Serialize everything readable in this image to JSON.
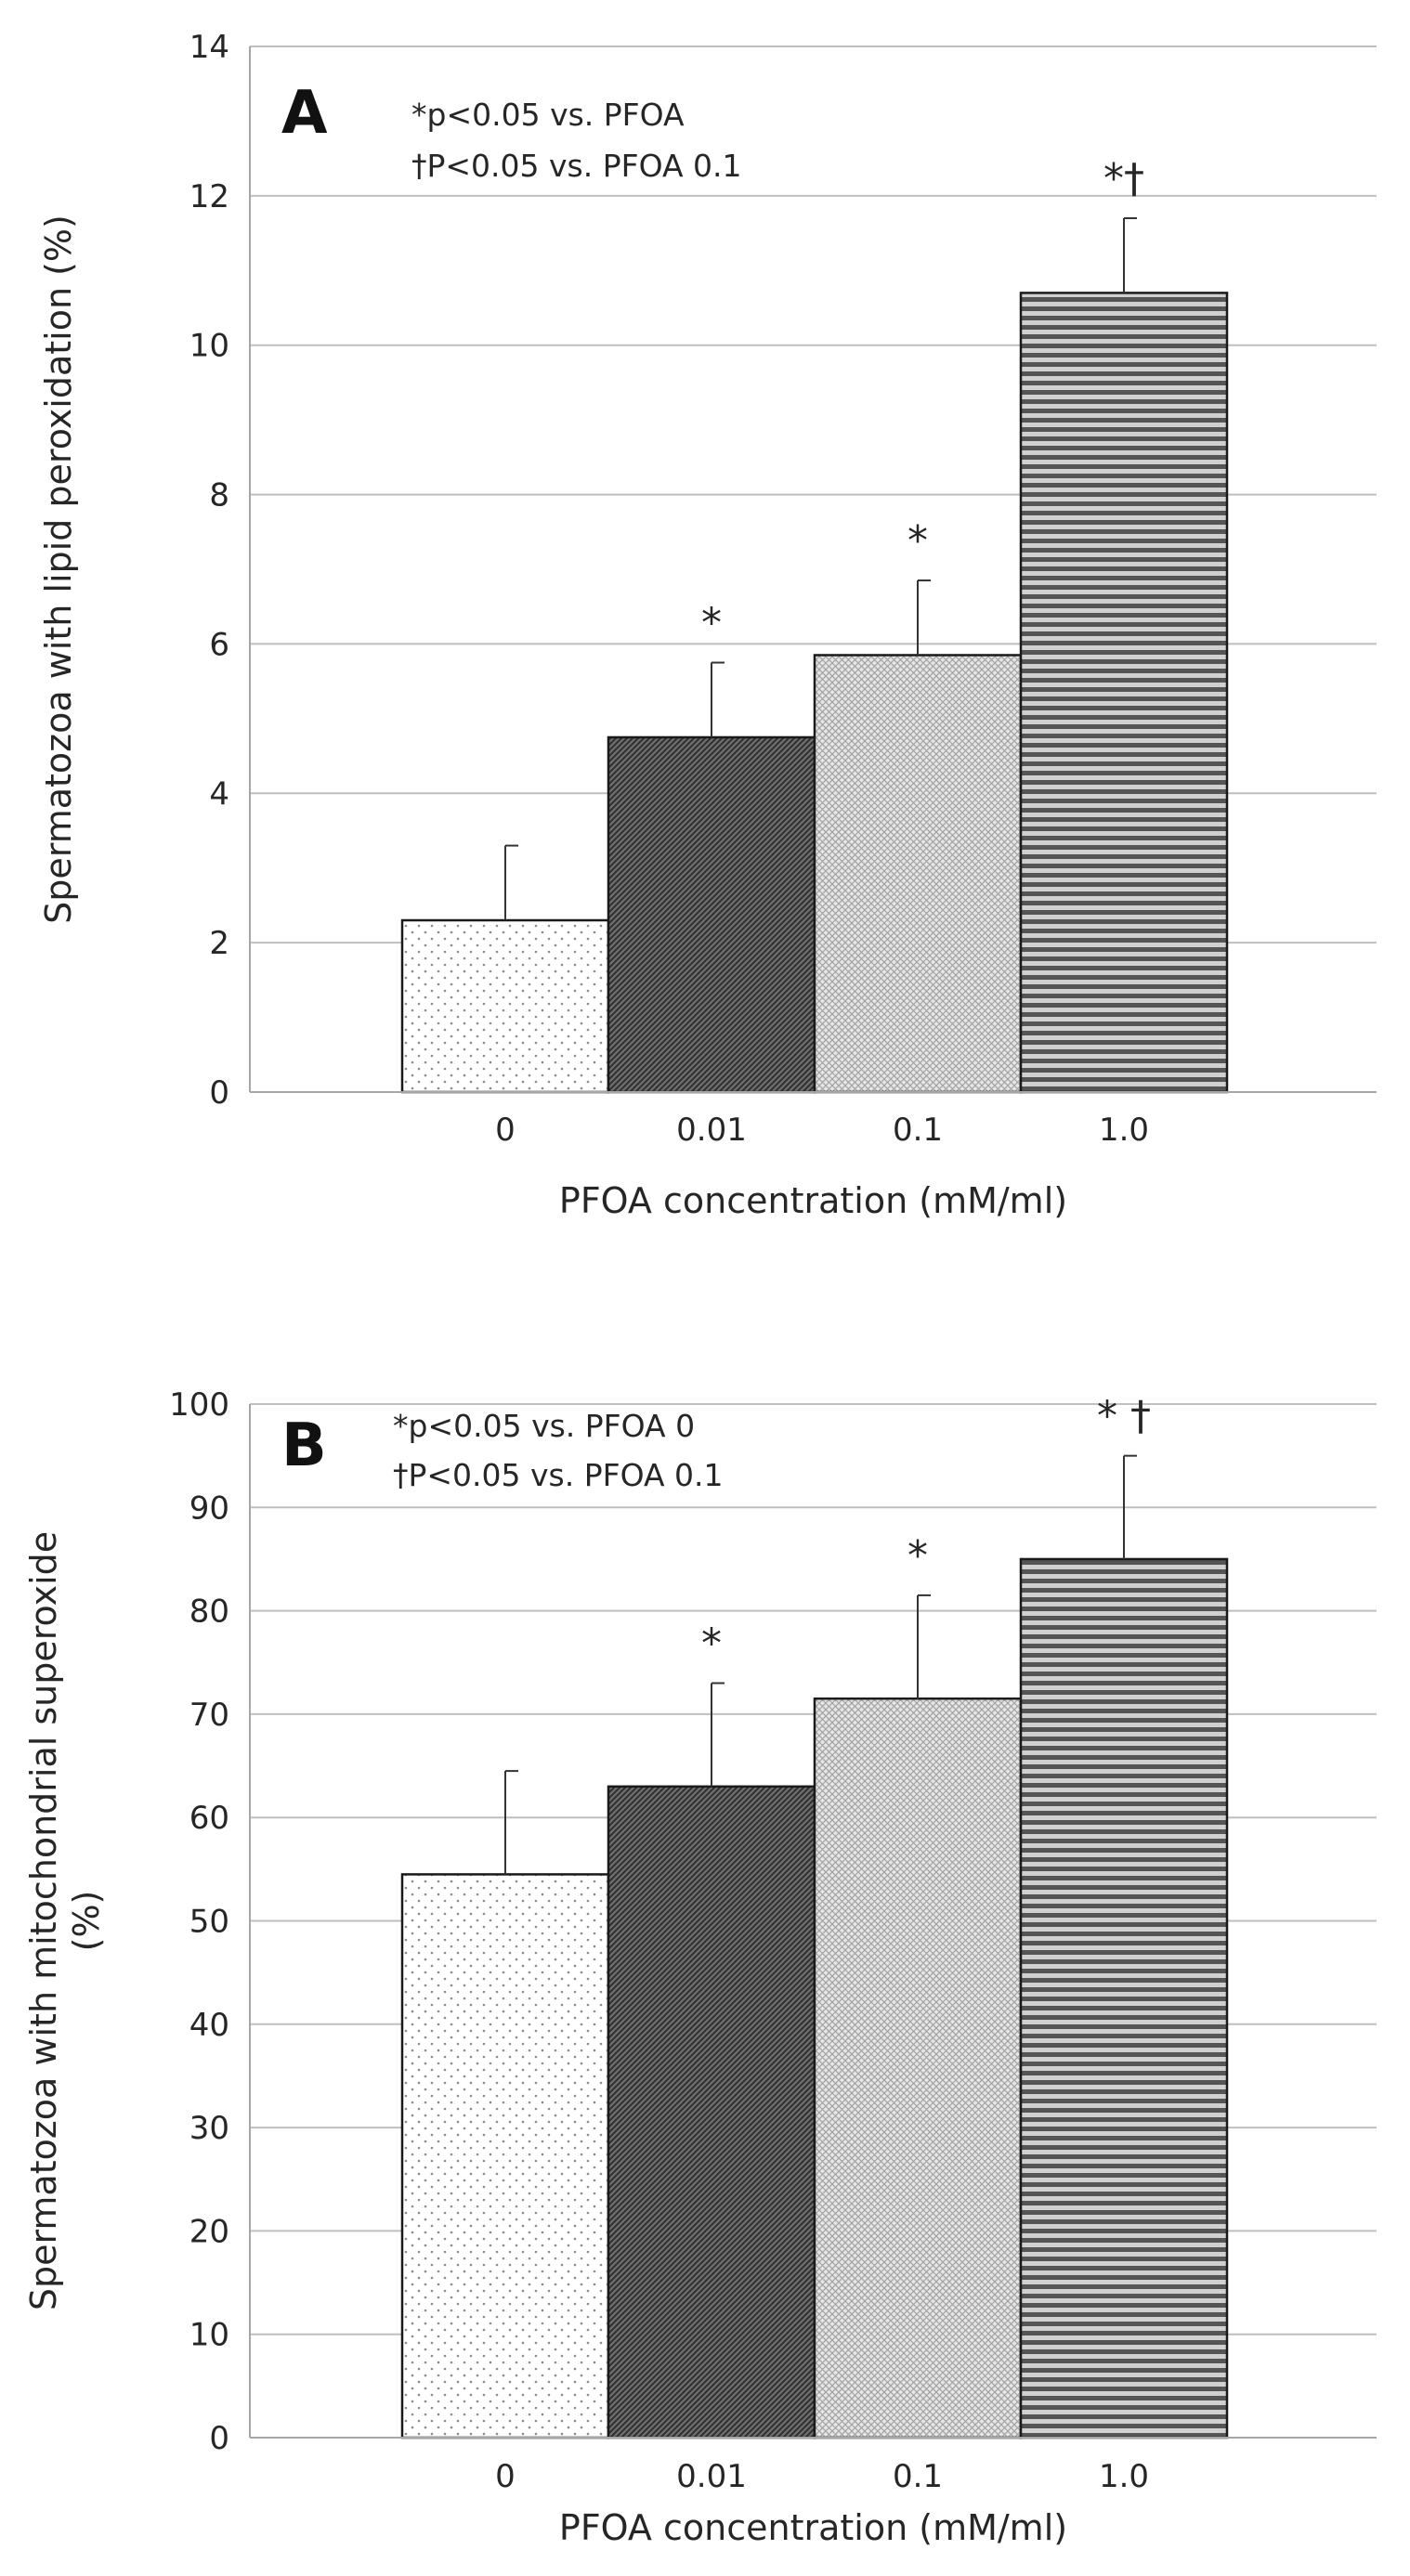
{
  "chart_data": [
    {
      "type": "bar",
      "panel_label": "A",
      "categories": [
        "0",
        "0.01",
        "0.1",
        "1.0"
      ],
      "values": [
        2.3,
        4.75,
        5.85,
        10.7
      ],
      "error_bars": [
        1.0,
        1.0,
        1.0,
        1.0
      ],
      "significance": [
        "",
        "*",
        "*",
        "*†"
      ],
      "yticks": [
        "0",
        "2",
        "4",
        "6",
        "8",
        "10",
        "12",
        "14"
      ],
      "ylim": [
        0,
        14
      ],
      "ylabel": "Spermatozoa with lipid peroxidation (%)",
      "xlabel": "PFOA concentration (mM/ml)",
      "annotations": [
        "*p<0.05 vs. PFOA",
        "†P<0.05 vs. PFOA 0.1"
      ],
      "grid": true
    },
    {
      "type": "bar",
      "panel_label": "B",
      "categories": [
        "0",
        "0.01",
        "0.1",
        "1.0"
      ],
      "values": [
        54.5,
        63.0,
        71.5,
        85.0
      ],
      "error_bars": [
        10.0,
        10.0,
        10.0,
        10.0
      ],
      "significance": [
        "",
        "*",
        "*",
        "* †"
      ],
      "yticks": [
        "0",
        "10",
        "20",
        "30",
        "40",
        "50",
        "60",
        "70",
        "80",
        "90",
        "100"
      ],
      "ylim": [
        0,
        100
      ],
      "ylabel_lines": [
        "Spermatozoa with mitochondrial superoxide",
        "(%)"
      ],
      "xlabel": "PFOA concentration (mM/ml)",
      "annotations": [
        "*p<0.05 vs. PFOA 0",
        "†P<0.05 vs. PFOA 0.1"
      ],
      "grid": true
    }
  ],
  "bar_styles": [
    "dots",
    "dense-dark",
    "light-crosshatch",
    "horizontal-stripes"
  ],
  "colors": {
    "grid": "#bfbfbf",
    "bar_edge": "#1a1a1a",
    "text": "#262626"
  }
}
